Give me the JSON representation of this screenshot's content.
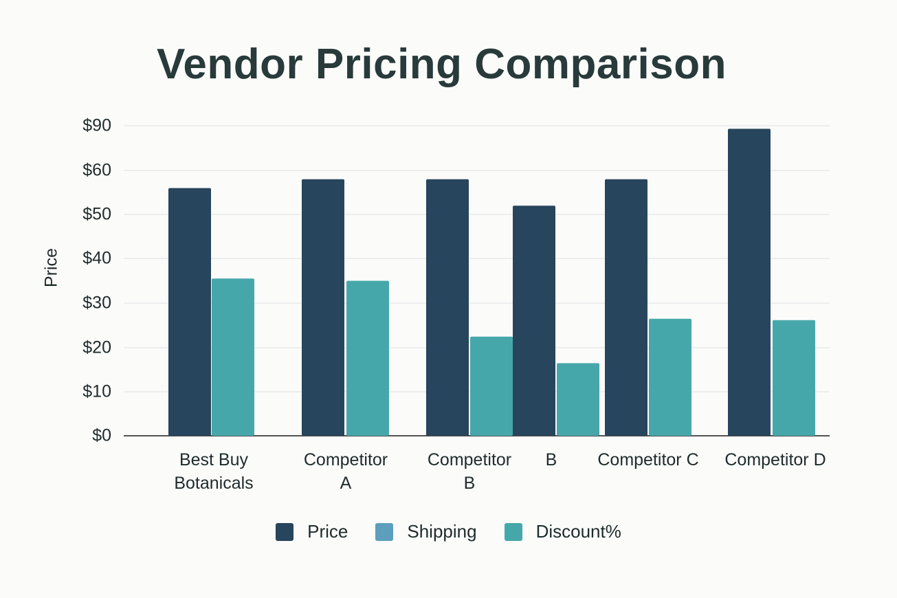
{
  "chart_data": {
    "type": "bar",
    "title": "Vendor Pricing Comparison",
    "ylabel": "Price",
    "xlabel": "",
    "yticks": [
      "$0",
      "$10",
      "$20",
      "$30",
      "$40",
      "$50",
      "$60",
      "$90"
    ],
    "categories": [
      "Best Buy Botanicals",
      "Competitor A",
      "Competitor B",
      "B",
      "Competitor C",
      "Competitor D"
    ],
    "category_labels": [
      "Best Buy\nBotanicals",
      "Competitor\nA",
      "Competitor\nB",
      "B",
      "Competitor C",
      "Competitor D"
    ],
    "series": [
      {
        "name": "Price",
        "color": "#27455c",
        "values": [
          56,
          58,
          58,
          52,
          58,
          88
        ]
      },
      {
        "name": "Shipping",
        "color": "#5b9fbd",
        "values": [
          null,
          null,
          null,
          null,
          null,
          null
        ]
      },
      {
        "name": "Discount%",
        "color": "#46a7ab",
        "values": [
          35.5,
          35,
          22.5,
          16.5,
          26.5,
          26.2
        ]
      }
    ],
    "legend_position": "bottom",
    "grid": true
  }
}
